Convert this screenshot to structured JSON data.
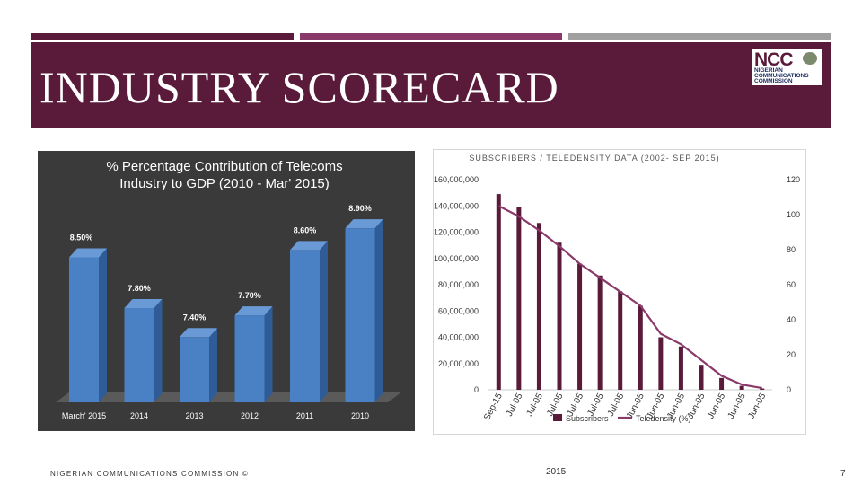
{
  "slide": {
    "title": "INDUSTRY SCORECARD",
    "footer": "NIGERIAN COMMUNICATIONS COMMISSION ©",
    "year": "2015",
    "page_number": "7",
    "colors": {
      "banner": "#5a1a3a",
      "bar_top1": "#5a1a3a",
      "bar_top2": "#8a3a6a",
      "bar_top3": "#a0a0a0"
    },
    "logo": {
      "mark": "NCC",
      "line1": "NIGERIAN",
      "line2": "COMMUNICATIONS",
      "line3": "COMMISSION"
    }
  },
  "chart_data": [
    {
      "type": "bar",
      "title": "% Percentage Contribution of Telecoms Industry to GDP (2010 - Mar' 2015)",
      "title_line1": "% Percentage Contribution of Telecoms",
      "title_line2": "Industry to GDP (2010 - Mar' 2015)",
      "categories": [
        "March' 2015",
        "2014",
        "2013",
        "2012",
        "2011",
        "2010"
      ],
      "values": [
        8.5,
        7.8,
        7.4,
        7.7,
        8.6,
        8.9
      ],
      "labels": [
        "8.50%",
        "7.80%",
        "7.40%",
        "7.70%",
        "8.60%",
        "8.90%"
      ],
      "color": "#4a80c4"
    },
    {
      "type": "bar+line",
      "title": "SUBSCRIBERS / TELEDENSITY DATA (2002- SEP 2015)",
      "categories": [
        "Sep-15",
        "Jul-05",
        "Jul-05",
        "Jul-05",
        "Jul-05",
        "Jul-05",
        "Jul-05",
        "Jun-05",
        "Jun-05",
        "Jun-05",
        "Jun-05",
        "Jun-05",
        "Jun-05",
        "Jun-05"
      ],
      "y_left_ticks": [
        "160,000,000",
        "140,000,000",
        "120,000,000",
        "100,000,000",
        "80,000,000",
        "60,000,000",
        "40,000,000",
        "20,000,000",
        "0"
      ],
      "y_left_range": [
        0,
        160000000
      ],
      "y_right_ticks": [
        "120",
        "100",
        "80",
        "60",
        "40",
        "20",
        "0"
      ],
      "y_right_range": [
        0,
        120
      ],
      "series": [
        {
          "name": "Subscribers",
          "type": "bar",
          "color": "#5a1a3a",
          "values": [
            149000000,
            139000000,
            127000000,
            112000000,
            96000000,
            87000000,
            75000000,
            64000000,
            40000000,
            33000000,
            19000000,
            9000000,
            3000000,
            1000000
          ]
        },
        {
          "name": "Teledensity (%)",
          "type": "line",
          "color": "#8a3a6a",
          "values": [
            105,
            99,
            91,
            82,
            72,
            64,
            56,
            48,
            32,
            26,
            17,
            8,
            3,
            1
          ]
        }
      ]
    }
  ]
}
